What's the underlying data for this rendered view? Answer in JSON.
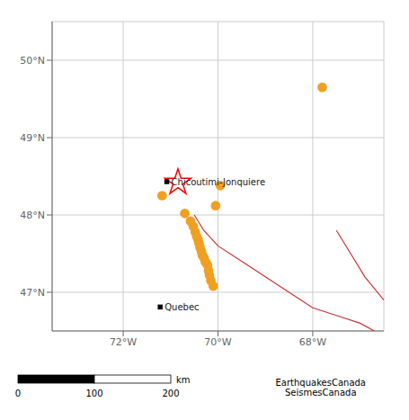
{
  "chart_data": {
    "type": "scatter",
    "xlim": [
      -73.5,
      -66.5
    ],
    "ylim": [
      46.5,
      50.5
    ],
    "xticks": [
      {
        "value": -72,
        "label": "72°W"
      },
      {
        "value": -70,
        "label": "70°W"
      },
      {
        "value": -68,
        "label": "68°W"
      }
    ],
    "yticks": [
      {
        "value": 47,
        "label": "47°N"
      },
      {
        "value": 48,
        "label": "48°N"
      },
      {
        "value": 49,
        "label": "49°N"
      },
      {
        "value": 50,
        "label": "50°N"
      }
    ],
    "grid": true,
    "series": [
      {
        "type": "scatter",
        "color": "#f0a020",
        "marker": "circle",
        "x": [
          -71.18,
          -70.7,
          -70.58,
          -70.52,
          -70.48,
          -70.45,
          -70.42,
          -70.4,
          -70.38,
          -70.35,
          -70.33,
          -70.3,
          -70.27,
          -70.25,
          -70.22,
          -70.2,
          -70.18,
          -70.15,
          -70.1,
          -70.05,
          -69.95,
          -67.8
        ],
        "values": [
          48.25,
          48.02,
          47.92,
          47.85,
          47.78,
          47.72,
          47.68,
          47.63,
          47.58,
          47.53,
          47.48,
          47.45,
          47.4,
          47.38,
          47.35,
          47.28,
          47.22,
          47.15,
          47.08,
          48.12,
          48.38,
          49.65
        ]
      },
      {
        "type": "scatter",
        "color": "red",
        "marker": "star",
        "x": [
          -70.845
        ],
        "values": [
          48.42
        ]
      },
      {
        "type": "scatter",
        "color": "black",
        "marker": "square",
        "x": [
          -71.08,
          -71.22
        ],
        "values": [
          48.43,
          46.81
        ]
      },
      {
        "type": "line",
        "color": "#cc3333",
        "x": [
          -70.5,
          -70.3,
          -70.0,
          -69.5,
          -69.0,
          -68.5,
          -68.0,
          -67.5,
          -67.0,
          -66.7
        ],
        "values": [
          48.0,
          47.8,
          47.6,
          47.4,
          47.2,
          47.0,
          46.8,
          46.7,
          46.6,
          46.5
        ]
      },
      {
        "type": "line",
        "color": "#cc3333",
        "x": [
          -67.5,
          -67.2,
          -66.9,
          -66.5
        ],
        "values": [
          47.8,
          47.5,
          47.2,
          46.9
        ]
      }
    ],
    "annotations": [
      {
        "text": "Chicoutimi-Jonquiere",
        "x": -71.08,
        "y": 48.43
      },
      {
        "text": "Quebec",
        "x": -71.22,
        "y": 46.81
      }
    ],
    "scale_bar": {
      "ticks": [
        0,
        100,
        200
      ],
      "unit": "km"
    },
    "credit": "EarthquakesCanada\nSeismesCanada"
  }
}
